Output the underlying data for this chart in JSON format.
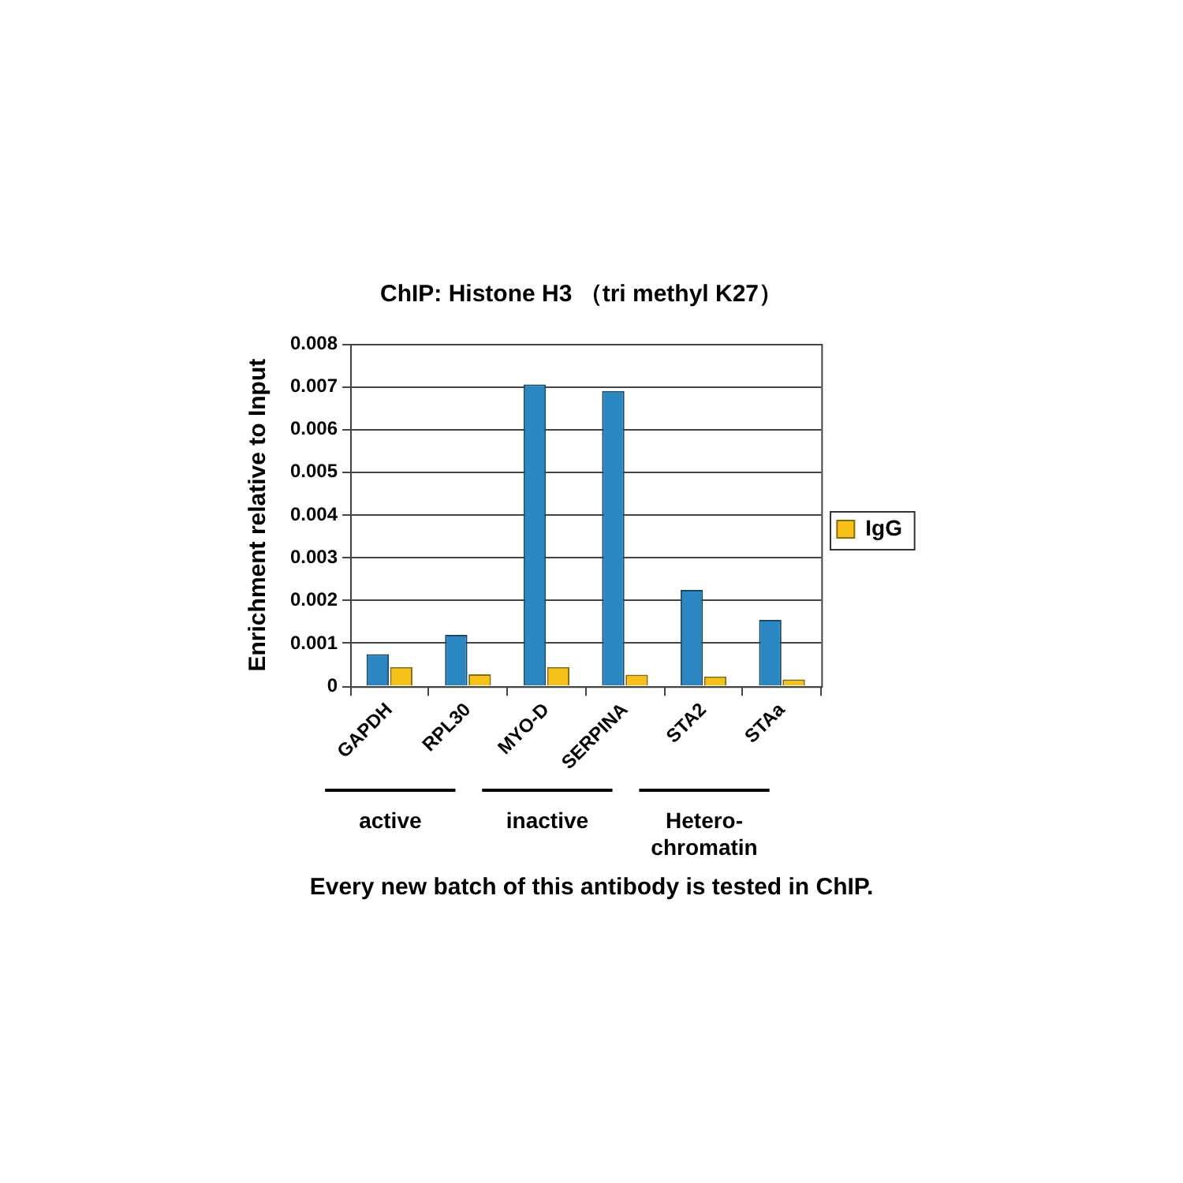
{
  "chart_data": {
    "type": "bar",
    "title": "ChIP: Histone H3 （tri methyl K27）",
    "ylabel": "Enrichment relative to Input",
    "categories": [
      "GAPDH",
      "RPL30",
      "MYO-D",
      "SERPINA",
      "STA2",
      "STAa"
    ],
    "series": [
      {
        "color": "#2b87c2",
        "values": [
          0.00075,
          0.0012,
          0.00705,
          0.0069,
          0.00225,
          0.00155
        ]
      },
      {
        "name": "IgG",
        "color": "#f6c21a",
        "values": [
          0.00045,
          0.00028,
          0.00045,
          0.00027,
          0.00023,
          0.00016
        ]
      }
    ],
    "ylim": [
      0,
      0.008
    ],
    "yticks": [
      0,
      0.001,
      0.002,
      0.003,
      0.004,
      0.005,
      0.006,
      0.007,
      0.008
    ],
    "grid": "y",
    "legend": "right",
    "annotations": [
      "active",
      "inactive",
      "Hetero-\nchromatin",
      "Every new batch of this antibody is tested in ChIP."
    ]
  }
}
